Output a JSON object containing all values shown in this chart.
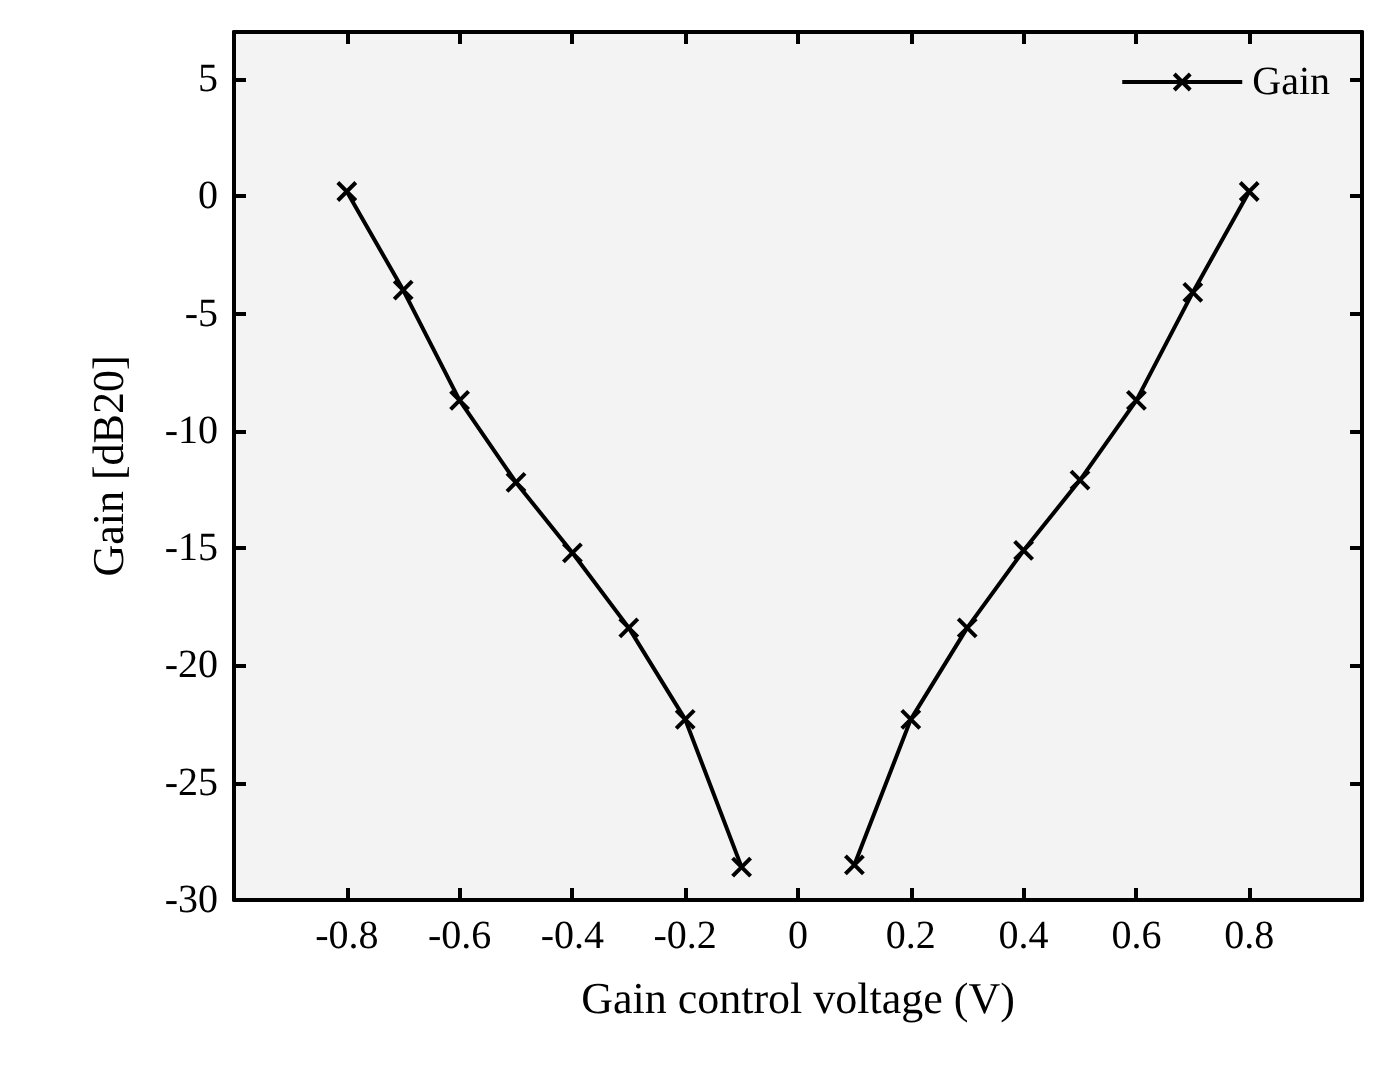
{
  "chart_data": {
    "type": "line",
    "xlabel": "Gain control voltage (V)",
    "ylabel": "Gain [dB20]",
    "x": [
      -0.8,
      -0.7,
      -0.6,
      -0.5,
      -0.4,
      -0.3,
      -0.2,
      -0.1,
      0,
      0.1,
      0.2,
      0.3,
      0.4,
      0.5,
      0.6,
      0.7,
      0.8
    ],
    "series": [
      {
        "name": "Gain",
        "color": "#000000",
        "values": [
          0.2,
          -4.0,
          -8.7,
          -12.2,
          -15.2,
          -18.4,
          -22.3,
          -28.6,
          null,
          -28.5,
          -22.3,
          -18.4,
          -15.1,
          -12.1,
          -8.7,
          -4.1,
          0.2
        ]
      }
    ],
    "xlim": [
      -1,
      1
    ],
    "xticks": [
      -0.8,
      -0.6,
      -0.4,
      -0.2,
      0,
      0.2,
      0.4,
      0.6,
      0.8
    ],
    "ylim": [
      -30,
      7
    ],
    "yticks": [
      -30,
      -25,
      -20,
      -15,
      -10,
      -5,
      0,
      5
    ],
    "grid": false,
    "legend": "top right",
    "marker": "cross",
    "line_style": "solid"
  }
}
